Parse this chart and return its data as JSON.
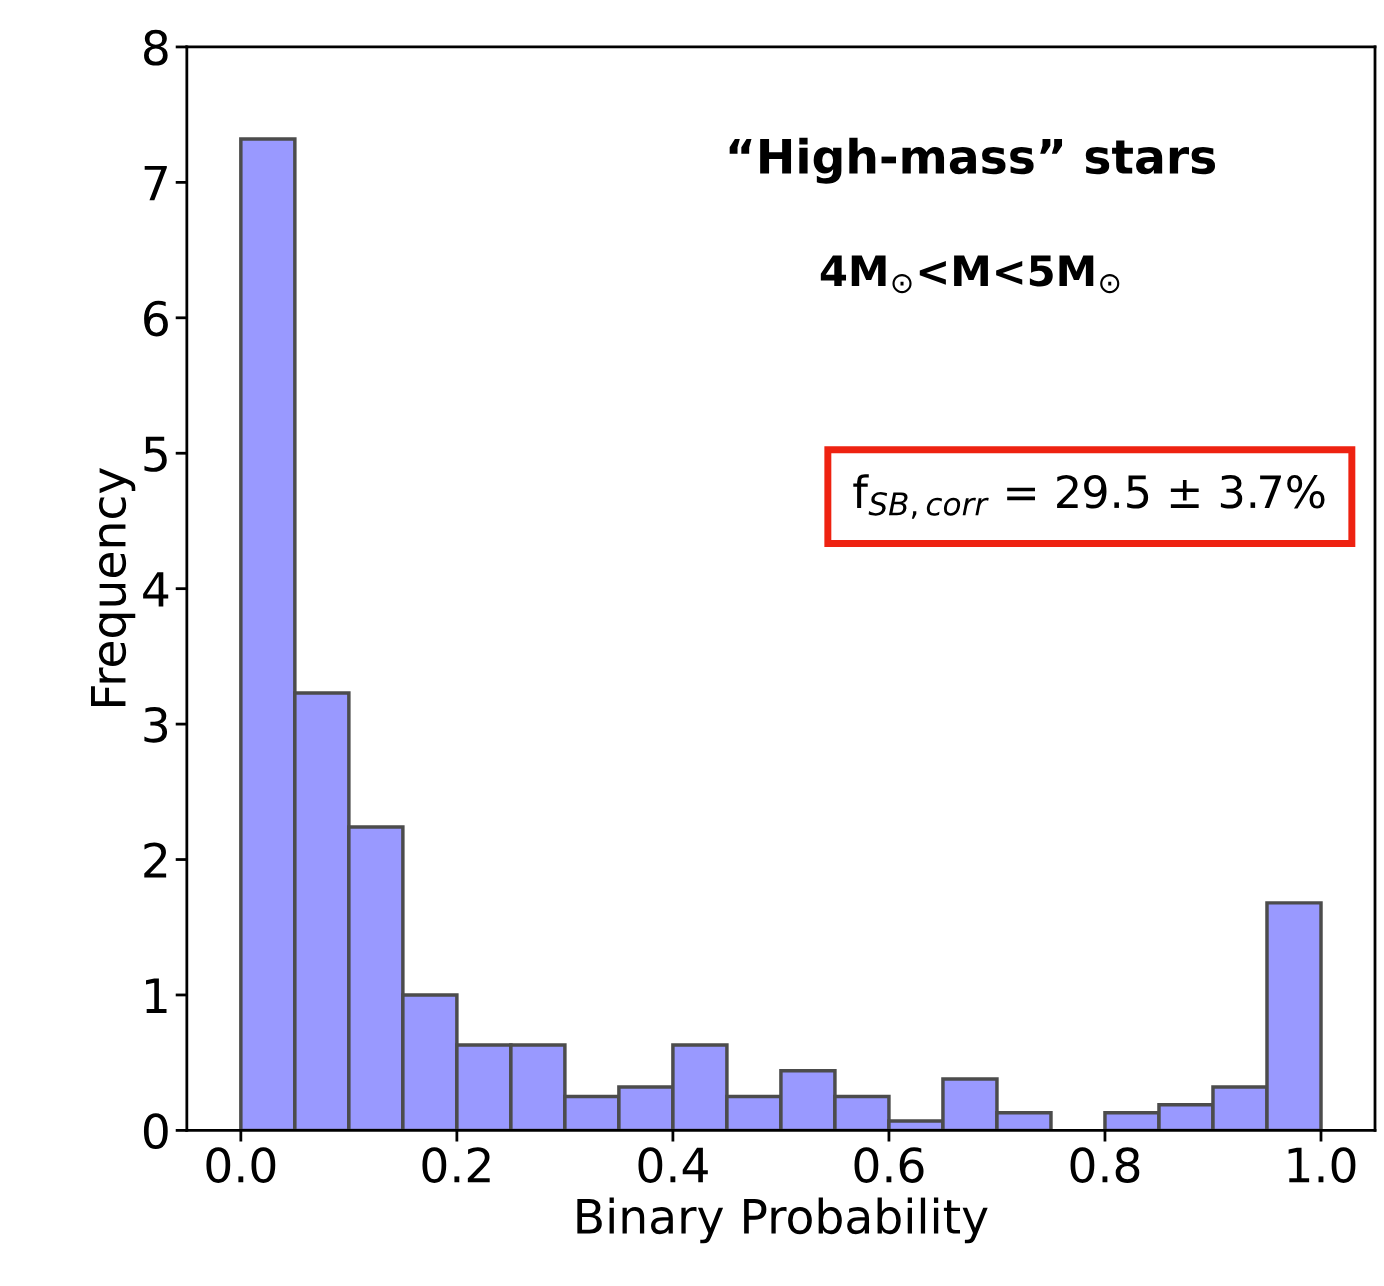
{
  "chart_data": {
    "type": "histogram",
    "xlabel": "Binary Probability",
    "ylabel": "Frequency",
    "bins": [
      0.0,
      0.05,
      0.1,
      0.15,
      0.2,
      0.25,
      0.3,
      0.35,
      0.4,
      0.45,
      0.5,
      0.55,
      0.6,
      0.65,
      0.7,
      0.75,
      0.8,
      0.85,
      0.9,
      0.95,
      1.0
    ],
    "values": [
      7.32,
      3.23,
      2.24,
      1.0,
      0.63,
      0.63,
      0.25,
      0.32,
      0.63,
      0.25,
      0.44,
      0.25,
      0.07,
      0.38,
      0.13,
      0,
      0.13,
      0.19,
      0.32,
      1.68
    ],
    "color": "#9999ff",
    "xlim": [
      -0.05,
      1.05
    ],
    "ylim": [
      0,
      8
    ],
    "xticks": [
      {
        "value": 0.0,
        "label": "0.0"
      },
      {
        "value": 0.2,
        "label": "0.2"
      },
      {
        "value": 0.4,
        "label": "0.4"
      },
      {
        "value": 0.6,
        "label": "0.6"
      },
      {
        "value": 0.8,
        "label": "0.8"
      },
      {
        "value": 1.0,
        "label": "1.0"
      }
    ],
    "yticks": [
      0,
      1,
      2,
      3,
      4,
      5,
      6,
      7,
      8
    ],
    "grid": false,
    "legend": false,
    "annotations": [
      "“High-mass” stars",
      "4M$_{⊙}$<M<5M$_{⊙}$",
      "f$_{SB,corr}$ = 29.5 ± 3.7%"
    ]
  }
}
